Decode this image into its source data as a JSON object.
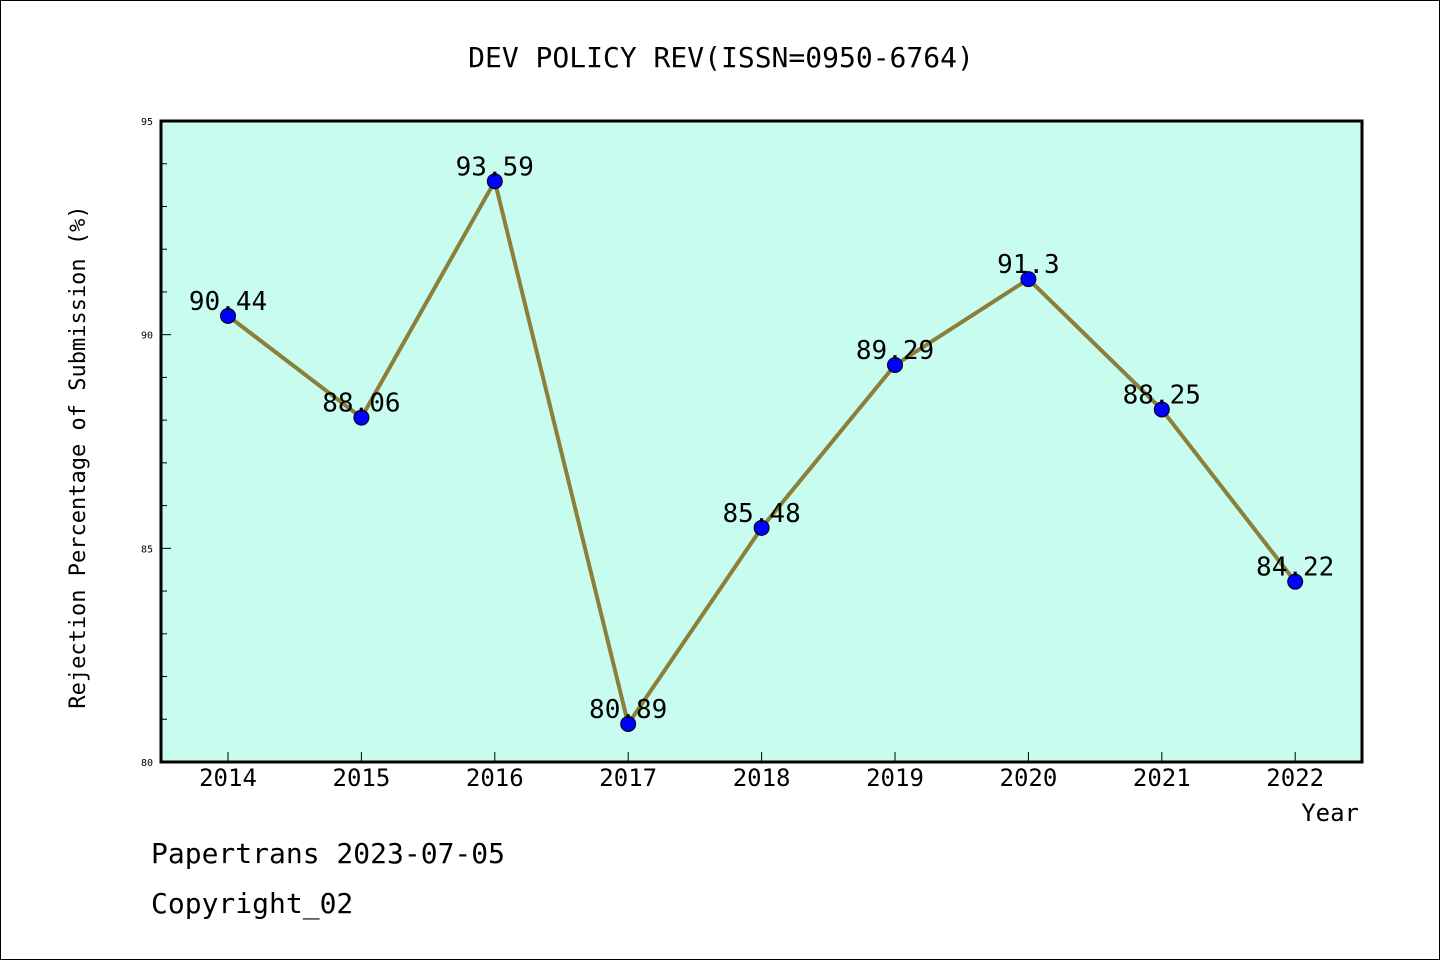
{
  "chart_data": {
    "type": "line",
    "title": "DEV POLICY REV(ISSN=0950-6764)",
    "xlabel": "Year",
    "ylabel": "Rejection Percentage of Submission (%)",
    "categories": [
      "2014",
      "2015",
      "2016",
      "2017",
      "2018",
      "2019",
      "2020",
      "2021",
      "2022"
    ],
    "values": [
      90.44,
      88.06,
      93.59,
      80.89,
      85.48,
      89.29,
      91.3,
      88.25,
      84.22
    ],
    "data_labels": [
      "90.44",
      "88.06",
      "93.59",
      "80.89",
      "85.48",
      "89.29",
      "91.3",
      "88.25",
      "84.22"
    ],
    "ylim": [
      80,
      95
    ],
    "yticks": [
      80,
      85,
      90,
      95
    ],
    "ytick_labels": [
      "80",
      "85",
      "90",
      "95"
    ],
    "grid": false,
    "colors": {
      "plot_background": "#c8fcee",
      "line": "#8b7f3a",
      "marker": "#0000ff"
    }
  },
  "footer": {
    "line1": "Papertrans 2023-07-05",
    "line2": "Copyright_02"
  }
}
